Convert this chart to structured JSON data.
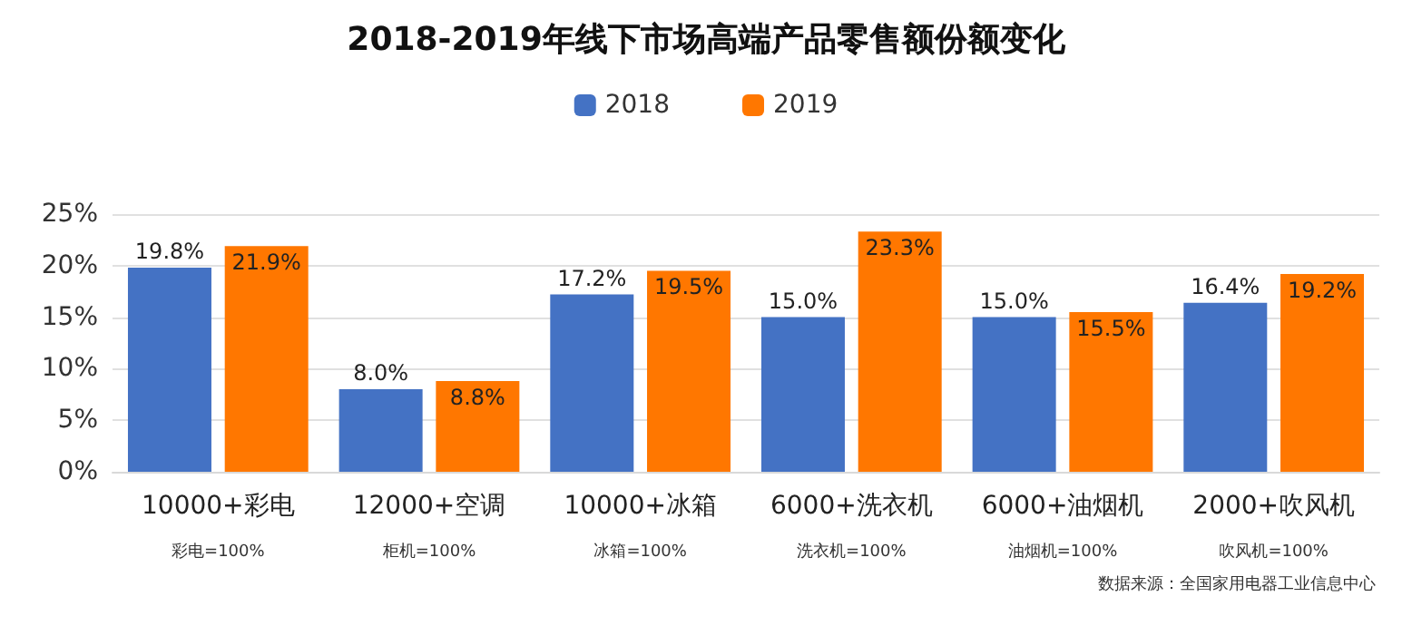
{
  "chart_data": {
    "type": "bar",
    "title": "2018-2019年线下市场高端产品零售额份额变化",
    "categories": [
      "10000+彩电",
      "12000+空调",
      "10000+冰箱",
      "6000+洗衣机",
      "6000+油烟机",
      "2000+吹风机"
    ],
    "series": [
      {
        "name": "2018",
        "color": "#4472c4",
        "values": [
          19.8,
          8.0,
          17.2,
          15.0,
          15.0,
          16.4
        ],
        "value_labels": [
          "19.8%",
          "8.0%",
          "17.2%",
          "15.0%",
          "15.0%",
          "16.4%"
        ]
      },
      {
        "name": "2019",
        "color": "#ff7700",
        "values": [
          21.9,
          8.8,
          19.5,
          23.3,
          15.5,
          19.2
        ],
        "value_labels": [
          "21.9%",
          "8.8%",
          "19.5%",
          "23.3%",
          "15.5%",
          "19.2%"
        ]
      }
    ],
    "ylim": [
      0,
      25
    ],
    "yticks": [
      {
        "value": 0,
        "label": "0%"
      },
      {
        "value": 5,
        "label": "5%"
      },
      {
        "value": 10,
        "label": "10%"
      },
      {
        "value": 15,
        "label": "15%"
      },
      {
        "value": 20,
        "label": "20%"
      },
      {
        "value": 25,
        "label": "25%"
      }
    ],
    "grid": "y",
    "legend": "top",
    "annotations": [
      "彩电=100%",
      "柜机=100%",
      "冰箱=100%",
      "洗衣机=100%",
      "油烟机=100%",
      "吹风机=100%",
      "数据来源：全国家用电器工业信息中心"
    ]
  }
}
